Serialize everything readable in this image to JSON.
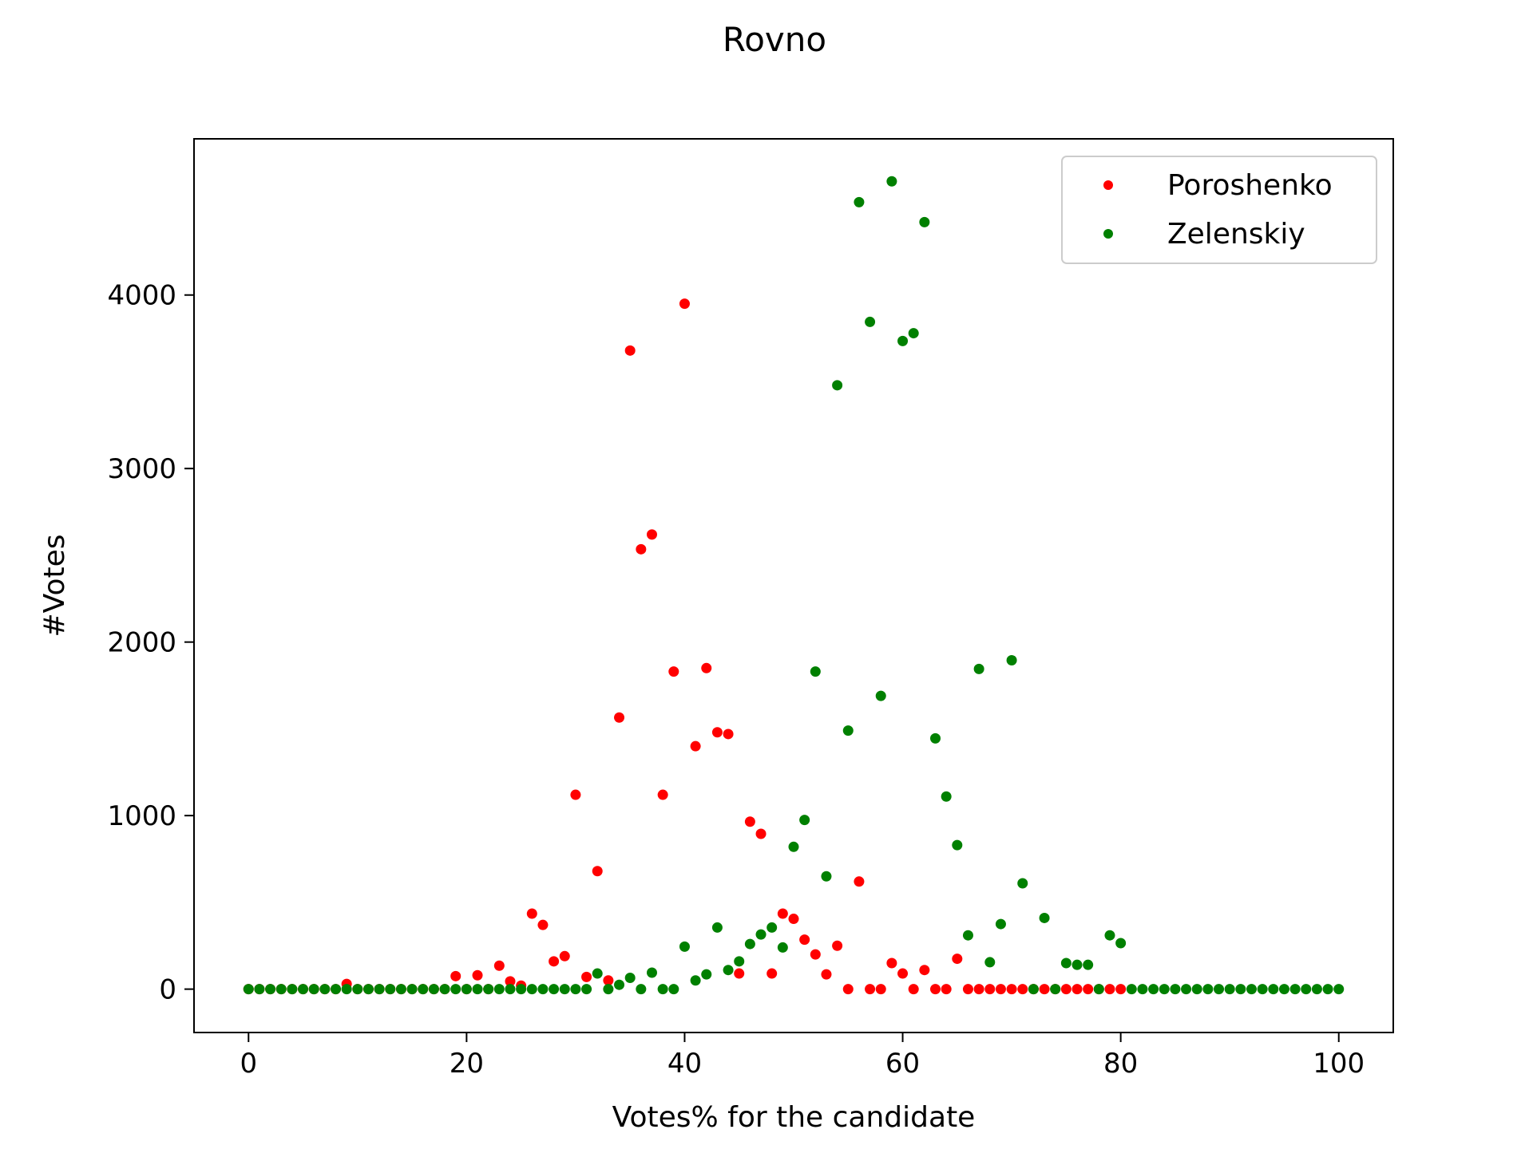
{
  "chart_data": {
    "type": "scatter",
    "title": "Rovno",
    "xlabel": "Votes% for the candidate",
    "ylabel": "#Votes",
    "xlim": [
      -5,
      105
    ],
    "ylim": [
      -250,
      4900
    ],
    "xticks": [
      0,
      20,
      40,
      60,
      80,
      100
    ],
    "yticks": [
      0,
      1000,
      2000,
      3000,
      4000
    ],
    "grid": false,
    "legend_position": "top-right",
    "series": [
      {
        "name": "Poroshenko",
        "color": "#ff0000",
        "points": [
          [
            0,
            0
          ],
          [
            1,
            0
          ],
          [
            2,
            0
          ],
          [
            3,
            0
          ],
          [
            4,
            0
          ],
          [
            5,
            0
          ],
          [
            6,
            0
          ],
          [
            7,
            0
          ],
          [
            8,
            0
          ],
          [
            9,
            30
          ],
          [
            10,
            0
          ],
          [
            11,
            0
          ],
          [
            12,
            0
          ],
          [
            13,
            0
          ],
          [
            14,
            0
          ],
          [
            15,
            0
          ],
          [
            16,
            0
          ],
          [
            17,
            0
          ],
          [
            18,
            0
          ],
          [
            19,
            75
          ],
          [
            20,
            0
          ],
          [
            21,
            80
          ],
          [
            22,
            0
          ],
          [
            23,
            135
          ],
          [
            24,
            45
          ],
          [
            25,
            20
          ],
          [
            26,
            435
          ],
          [
            27,
            370
          ],
          [
            28,
            160
          ],
          [
            29,
            190
          ],
          [
            30,
            1120
          ],
          [
            31,
            70
          ],
          [
            32,
            680
          ],
          [
            33,
            50
          ],
          [
            34,
            1565
          ],
          [
            35,
            3680
          ],
          [
            36,
            2535
          ],
          [
            37,
            2620
          ],
          [
            38,
            1120
          ],
          [
            39,
            1830
          ],
          [
            40,
            3950
          ],
          [
            41,
            1400
          ],
          [
            42,
            1850
          ],
          [
            43,
            1480
          ],
          [
            44,
            1470
          ],
          [
            45,
            90
          ],
          [
            46,
            965
          ],
          [
            47,
            895
          ],
          [
            48,
            90
          ],
          [
            49,
            435
          ],
          [
            50,
            405
          ],
          [
            51,
            285
          ],
          [
            52,
            200
          ],
          [
            53,
            85
          ],
          [
            54,
            250
          ],
          [
            55,
            0
          ],
          [
            56,
            620
          ],
          [
            57,
            0
          ],
          [
            58,
            0
          ],
          [
            59,
            150
          ],
          [
            60,
            90
          ],
          [
            61,
            0
          ],
          [
            62,
            110
          ],
          [
            63,
            0
          ],
          [
            64,
            0
          ],
          [
            65,
            175
          ],
          [
            66,
            0
          ],
          [
            67,
            0
          ],
          [
            68,
            0
          ],
          [
            69,
            0
          ],
          [
            70,
            0
          ],
          [
            71,
            0
          ],
          [
            72,
            0
          ],
          [
            73,
            0
          ],
          [
            74,
            0
          ],
          [
            75,
            0
          ],
          [
            76,
            0
          ],
          [
            77,
            0
          ],
          [
            78,
            0
          ],
          [
            79,
            0
          ],
          [
            80,
            0
          ]
        ]
      },
      {
        "name": "Zelenskiy",
        "color": "#008000",
        "points": [
          [
            0,
            0
          ],
          [
            1,
            0
          ],
          [
            2,
            0
          ],
          [
            3,
            0
          ],
          [
            4,
            0
          ],
          [
            5,
            0
          ],
          [
            6,
            0
          ],
          [
            7,
            0
          ],
          [
            8,
            0
          ],
          [
            9,
            0
          ],
          [
            10,
            0
          ],
          [
            11,
            0
          ],
          [
            12,
            0
          ],
          [
            13,
            0
          ],
          [
            14,
            0
          ],
          [
            15,
            0
          ],
          [
            16,
            0
          ],
          [
            17,
            0
          ],
          [
            18,
            0
          ],
          [
            19,
            0
          ],
          [
            20,
            0
          ],
          [
            21,
            0
          ],
          [
            22,
            0
          ],
          [
            23,
            0
          ],
          [
            24,
            0
          ],
          [
            25,
            0
          ],
          [
            26,
            0
          ],
          [
            27,
            0
          ],
          [
            28,
            0
          ],
          [
            29,
            0
          ],
          [
            30,
            0
          ],
          [
            31,
            0
          ],
          [
            32,
            90
          ],
          [
            33,
            0
          ],
          [
            34,
            25
          ],
          [
            35,
            65
          ],
          [
            36,
            0
          ],
          [
            37,
            95
          ],
          [
            38,
            0
          ],
          [
            39,
            0
          ],
          [
            40,
            245
          ],
          [
            41,
            50
          ],
          [
            42,
            85
          ],
          [
            43,
            355
          ],
          [
            44,
            110
          ],
          [
            45,
            160
          ],
          [
            46,
            260
          ],
          [
            47,
            315
          ],
          [
            48,
            355
          ],
          [
            49,
            240
          ],
          [
            50,
            820
          ],
          [
            51,
            975
          ],
          [
            52,
            1830
          ],
          [
            53,
            650
          ],
          [
            54,
            3480
          ],
          [
            55,
            1490
          ],
          [
            56,
            4535
          ],
          [
            57,
            3845
          ],
          [
            58,
            1690
          ],
          [
            59,
            4655
          ],
          [
            60,
            3735
          ],
          [
            61,
            3780
          ],
          [
            62,
            4420
          ],
          [
            63,
            1445
          ],
          [
            64,
            1110
          ],
          [
            65,
            830
          ],
          [
            66,
            310
          ],
          [
            67,
            1845
          ],
          [
            68,
            155
          ],
          [
            69,
            375
          ],
          [
            70,
            1895
          ],
          [
            71,
            610
          ],
          [
            72,
            0
          ],
          [
            73,
            410
          ],
          [
            74,
            0
          ],
          [
            75,
            150
          ],
          [
            76,
            140
          ],
          [
            77,
            140
          ],
          [
            78,
            0
          ],
          [
            79,
            310
          ],
          [
            80,
            265
          ],
          [
            81,
            0
          ],
          [
            82,
            0
          ],
          [
            83,
            0
          ],
          [
            84,
            0
          ],
          [
            85,
            0
          ],
          [
            86,
            0
          ],
          [
            87,
            0
          ],
          [
            88,
            0
          ],
          [
            89,
            0
          ],
          [
            90,
            0
          ],
          [
            91,
            0
          ],
          [
            92,
            0
          ],
          [
            93,
            0
          ],
          [
            94,
            0
          ],
          [
            95,
            0
          ],
          [
            96,
            0
          ],
          [
            97,
            0
          ],
          [
            98,
            0
          ],
          [
            99,
            0
          ],
          [
            100,
            0
          ]
        ]
      }
    ]
  }
}
